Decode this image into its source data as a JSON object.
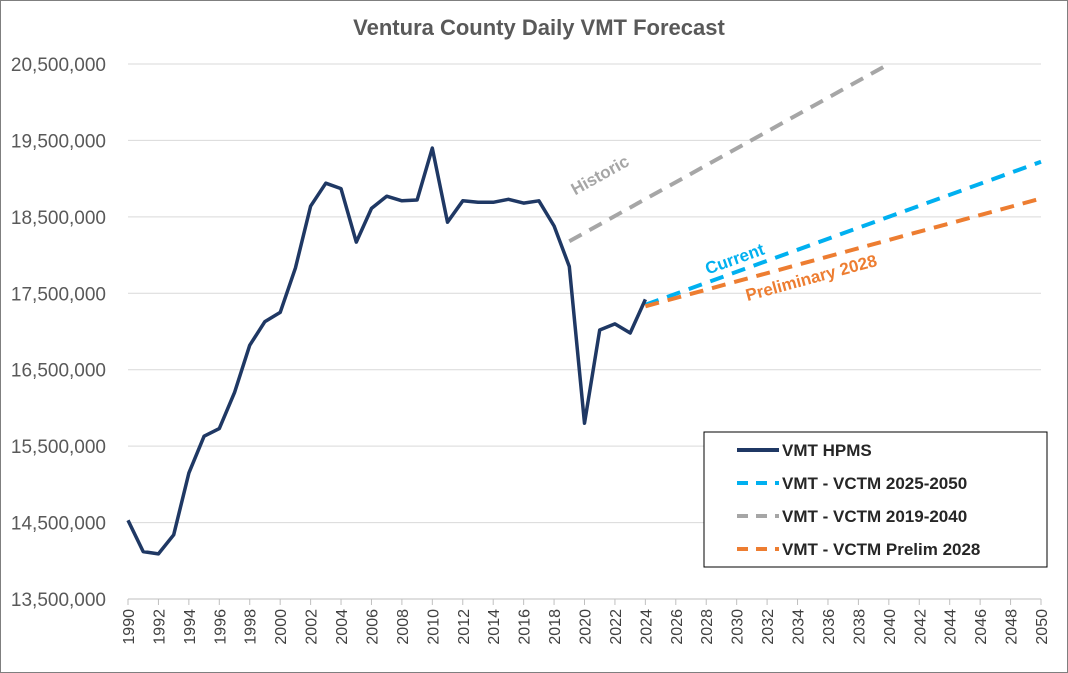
{
  "chart_data": {
    "type": "line",
    "title": "Ventura County Daily VMT Forecast",
    "xlabel": "",
    "ylabel": "",
    "xlim": [
      1990,
      2050
    ],
    "ylim": [
      13500000,
      20500000
    ],
    "y_ticks": [
      "13,500,000",
      "14,500,000",
      "15,500,000",
      "16,500,000",
      "17,500,000",
      "18,500,000",
      "19,500,000",
      "20,500,000"
    ],
    "x_ticks": [
      "1990",
      "1992",
      "1994",
      "1996",
      "1998",
      "2000",
      "2002",
      "2004",
      "2006",
      "2008",
      "2010",
      "2012",
      "2014",
      "2016",
      "2018",
      "2020",
      "2022",
      "2024",
      "2026",
      "2028",
      "2030",
      "2032",
      "2034",
      "2036",
      "2038",
      "2040",
      "2042",
      "2044",
      "2046",
      "2048",
      "2050"
    ],
    "grid": "horizontal",
    "legend_position": "bottom-right",
    "series": [
      {
        "name": "VMT HPMS",
        "color": "#1f3864",
        "style": "solid",
        "x": [
          1990,
          1991,
          1992,
          1993,
          1994,
          1995,
          1996,
          1997,
          1998,
          1999,
          2000,
          2001,
          2002,
          2003,
          2004,
          2005,
          2006,
          2007,
          2008,
          2009,
          2010,
          2011,
          2012,
          2013,
          2014,
          2015,
          2016,
          2017,
          2018,
          2019,
          2020,
          2021,
          2022,
          2023,
          2024
        ],
        "y": [
          14530000,
          14120000,
          14090000,
          14340000,
          15150000,
          15630000,
          15730000,
          16200000,
          16820000,
          17130000,
          17250000,
          17830000,
          18640000,
          18940000,
          18870000,
          18170000,
          18610000,
          18770000,
          18710000,
          18720000,
          19400000,
          18430000,
          18710000,
          18690000,
          18690000,
          18730000,
          18680000,
          18710000,
          18380000,
          17850000,
          15800000,
          17020000,
          17100000,
          16980000,
          17420000
        ]
      },
      {
        "name": "VMT - VCTM 2025-2050",
        "color": "#00b0f0",
        "style": "dashed",
        "x": [
          2024,
          2050
        ],
        "y": [
          17350000,
          19220000
        ]
      },
      {
        "name": "VMT - VCTM 2019-2040",
        "color": "#a6a6a6",
        "style": "dashed",
        "x": [
          2019,
          2040
        ],
        "y": [
          18180000,
          20500000
        ]
      },
      {
        "name": "VMT - VCTM Prelim 2028",
        "color": "#ed7d31",
        "style": "dashed",
        "x": [
          2024,
          2050
        ],
        "y": [
          17330000,
          18740000
        ]
      }
    ],
    "annotations": [
      {
        "text": "Historic",
        "color": "#a6a6a6",
        "x": 2021.2,
        "y": 18980000
      },
      {
        "text": "Current",
        "color": "#00b0f0",
        "x": 2030.0,
        "y": 17880000
      },
      {
        "text": "Preliminary 2028",
        "color": "#ed7d31",
        "x": 2035.0,
        "y": 17630000
      }
    ]
  }
}
